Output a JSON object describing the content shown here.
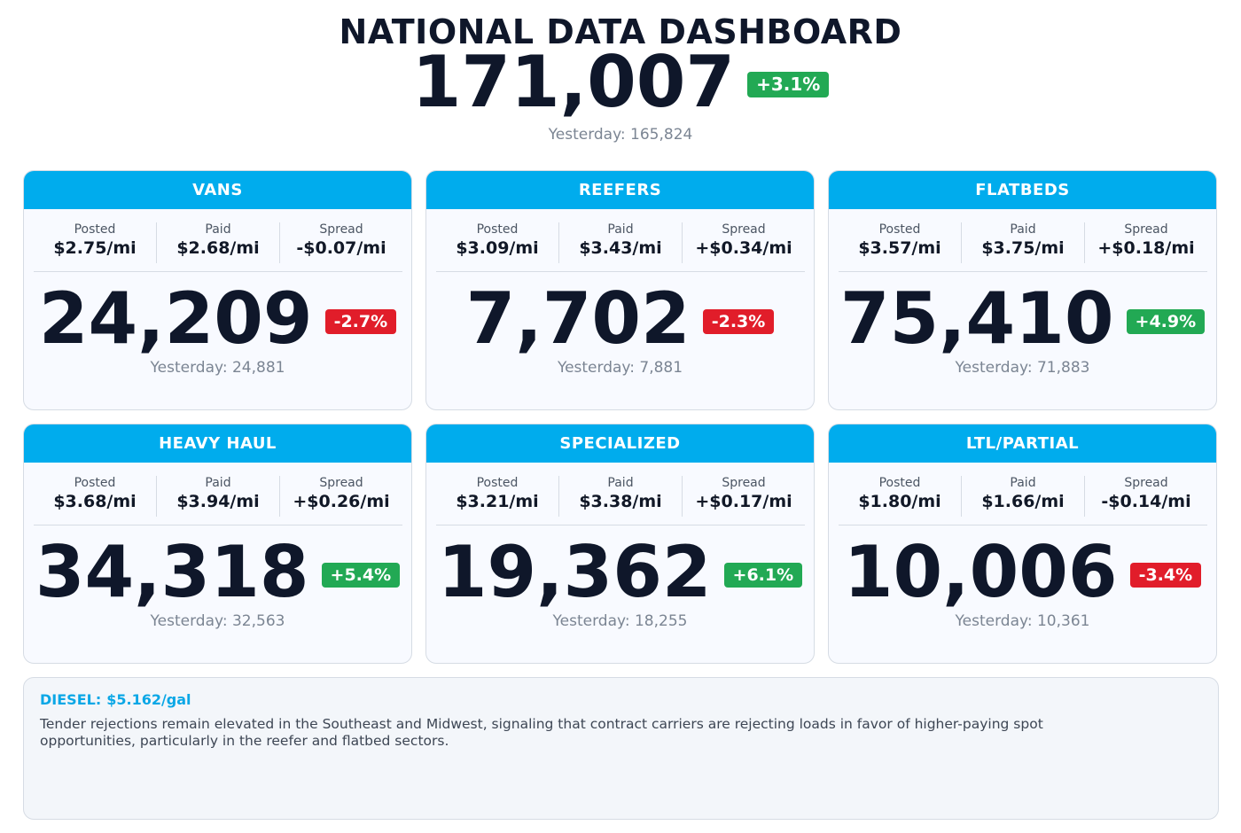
{
  "title": "NATIONAL DATA DASHBOARD",
  "total": {
    "value": "171,007",
    "change": "+3.1%",
    "change_dir": "up",
    "yesterday": "Yesterday: 165,824"
  },
  "labels": {
    "posted": "Posted",
    "paid": "Paid",
    "spread": "Spread"
  },
  "cards": [
    {
      "name": "VANS",
      "posted": "$2.75/mi",
      "paid": "$2.68/mi",
      "spread": "-$0.07/mi",
      "value": "24,209",
      "change": "-2.7%",
      "change_dir": "down",
      "yesterday": "Yesterday: 24,881"
    },
    {
      "name": "REEFERS",
      "posted": "$3.09/mi",
      "paid": "$3.43/mi",
      "spread": "+$0.34/mi",
      "value": "7,702",
      "change": "-2.3%",
      "change_dir": "down",
      "yesterday": "Yesterday: 7,881"
    },
    {
      "name": "FLATBEDS",
      "posted": "$3.57/mi",
      "paid": "$3.75/mi",
      "spread": "+$0.18/mi",
      "value": "75,410",
      "change": "+4.9%",
      "change_dir": "up",
      "yesterday": "Yesterday: 71,883"
    },
    {
      "name": "HEAVY HAUL",
      "posted": "$3.68/mi",
      "paid": "$3.94/mi",
      "spread": "+$0.26/mi",
      "value": "34,318",
      "change": "+5.4%",
      "change_dir": "up",
      "yesterday": "Yesterday: 32,563"
    },
    {
      "name": "SPECIALIZED",
      "posted": "$3.21/mi",
      "paid": "$3.38/mi",
      "spread": "+$0.17/mi",
      "value": "19,362",
      "change": "+6.1%",
      "change_dir": "up",
      "yesterday": "Yesterday: 18,255"
    },
    {
      "name": "LTL/PARTIAL",
      "posted": "$1.80/mi",
      "paid": "$1.66/mi",
      "spread": "-$0.14/mi",
      "value": "10,006",
      "change": "-3.4%",
      "change_dir": "down",
      "yesterday": "Yesterday: 10,361"
    }
  ],
  "notes": {
    "diesel_label": "DIESEL:",
    "diesel_value": "$5.162/gal",
    "commentary": "Tender rejections remain elevated in the Southeast and Midwest, signaling that contract carriers are rejecting loads in favor of higher-paying spot opportunities, particularly in the reefer and flatbed sectors."
  },
  "colors": {
    "header": "#00aced",
    "up": "#22a954",
    "down": "#e11d2a",
    "diesel": "#0aa7e6"
  }
}
